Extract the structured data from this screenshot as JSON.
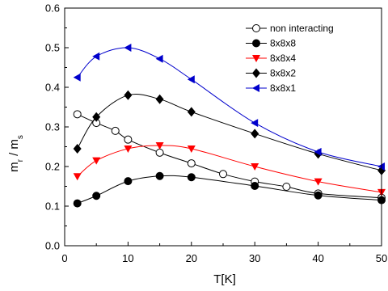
{
  "chart_data": {
    "type": "line",
    "title": "",
    "xlabel": "T[K]",
    "ylabel": {
      "main": "m",
      "sub1": "r",
      "sep": " / m",
      "sub2": "s"
    },
    "xlim": [
      0,
      50
    ],
    "ylim": [
      0,
      0.6
    ],
    "xticks": [
      0,
      10,
      20,
      30,
      40,
      50
    ],
    "yticks": [
      0.0,
      0.1,
      0.2,
      0.3,
      0.4,
      0.5,
      0.6
    ],
    "ytick_labels": [
      "0.0",
      "0.1",
      "0.2",
      "0.3",
      "0.4",
      "0.5",
      "0.6"
    ],
    "grid": false,
    "legend_position": "top-right",
    "series": [
      {
        "name": "non interacting",
        "marker": "circle-open",
        "color": "#000000",
        "x": [
          2,
          5,
          8,
          10,
          15,
          20,
          25,
          30,
          35,
          40,
          50
        ],
        "y": [
          0.332,
          0.31,
          0.29,
          0.268,
          0.235,
          0.208,
          0.181,
          0.162,
          0.149,
          0.132,
          0.121
        ]
      },
      {
        "name": "8x8x8",
        "marker": "circle-filled",
        "color": "#000000",
        "x": [
          2,
          5,
          10,
          15,
          20,
          30,
          40,
          50
        ],
        "y": [
          0.107,
          0.126,
          0.163,
          0.176,
          0.173,
          0.151,
          0.127,
          0.115
        ]
      },
      {
        "name": "8x8x4",
        "marker": "triangle-down",
        "color": "#ff0000",
        "x": [
          2,
          5,
          10,
          15,
          20,
          30,
          40,
          50
        ],
        "y": [
          0.175,
          0.215,
          0.245,
          0.253,
          0.245,
          0.2,
          0.162,
          0.135
        ]
      },
      {
        "name": "8x8x2",
        "marker": "diamond",
        "color": "#000000",
        "x": [
          2,
          5,
          10,
          15,
          20,
          30,
          40,
          50
        ],
        "y": [
          0.245,
          0.325,
          0.38,
          0.37,
          0.338,
          0.283,
          0.232,
          0.19
        ]
      },
      {
        "name": "8x8x1",
        "marker": "triangle-left",
        "color": "#0000cc",
        "x": [
          2,
          5,
          10,
          15,
          20,
          30,
          40,
          50
        ],
        "y": [
          0.425,
          0.478,
          0.5,
          0.472,
          0.42,
          0.31,
          0.237,
          0.2
        ]
      }
    ]
  }
}
